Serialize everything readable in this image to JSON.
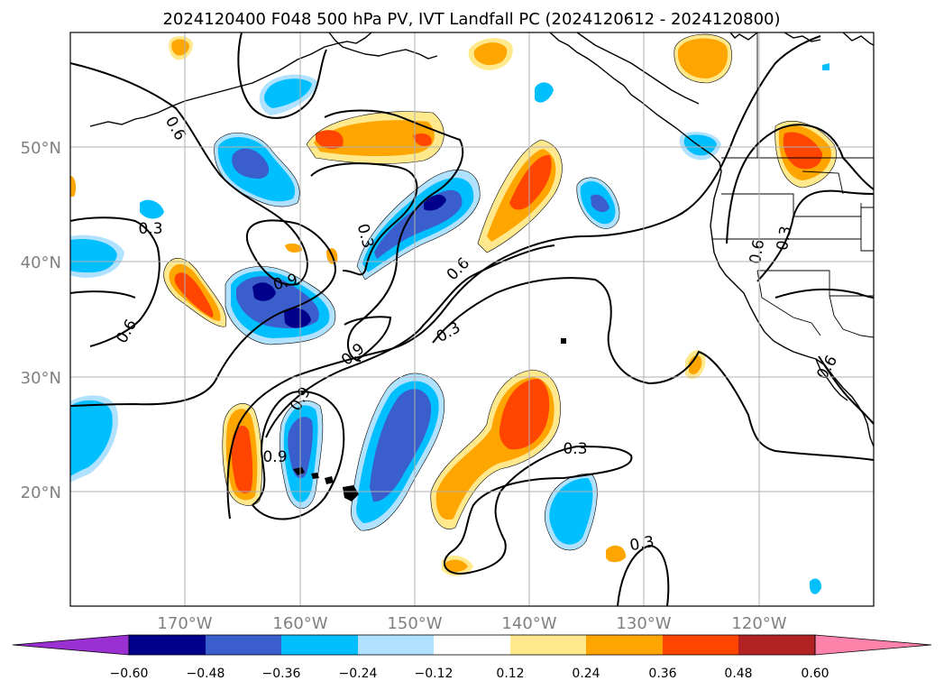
{
  "title": "2024120400 F048 500 hPa PV, IVT Landfall PC (2024120612 - 2024120800)",
  "map": {
    "lat_labels": [
      "50°N",
      "40°N",
      "30°N",
      "20°N"
    ],
    "lon_labels": [
      "170°W",
      "160°W",
      "150°W",
      "140°W",
      "130°W",
      "120°W"
    ],
    "grid": true,
    "contour_labels": [
      "0.6",
      "0.3",
      "0.3",
      "0.9",
      "0.6",
      "0.9",
      "0.6",
      "0.3",
      "0.9",
      "0.9",
      "0.3",
      "0.3",
      "0.6",
      "0.3",
      "0.6"
    ]
  },
  "colorbar": {
    "ticks": [
      "−0.60",
      "−0.48",
      "−0.36",
      "−0.24",
      "−0.12",
      "0.12",
      "0.24",
      "0.36",
      "0.48",
      "0.60"
    ],
    "colors": [
      "#9b30d2",
      "#00008b",
      "#3a5fcd",
      "#00bfff",
      "#b0e2ff",
      "#ffffff",
      "#ffe98c",
      "#ffa500",
      "#ff4500",
      "#b22222",
      "#ff82ab"
    ]
  }
}
